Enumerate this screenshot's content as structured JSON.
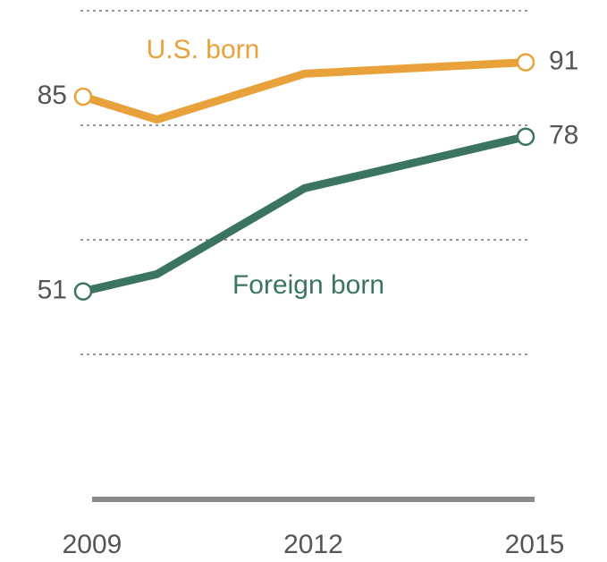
{
  "chart_data": {
    "type": "line",
    "x": [
      2009,
      2010,
      2012,
      2015
    ],
    "xlim": [
      2009,
      2015
    ],
    "xticks": [
      2009,
      2012,
      2015
    ],
    "ylim": [
      15,
      100
    ],
    "yticks": [
      40,
      60,
      80,
      100
    ],
    "grid": true,
    "series": [
      {
        "name": "U.S. born",
        "color": "#e9a23b",
        "values": [
          85,
          81,
          89,
          91
        ]
      },
      {
        "name": "Foreign born",
        "color": "#3b7560",
        "values": [
          51,
          54,
          69,
          78
        ]
      }
    ]
  }
}
